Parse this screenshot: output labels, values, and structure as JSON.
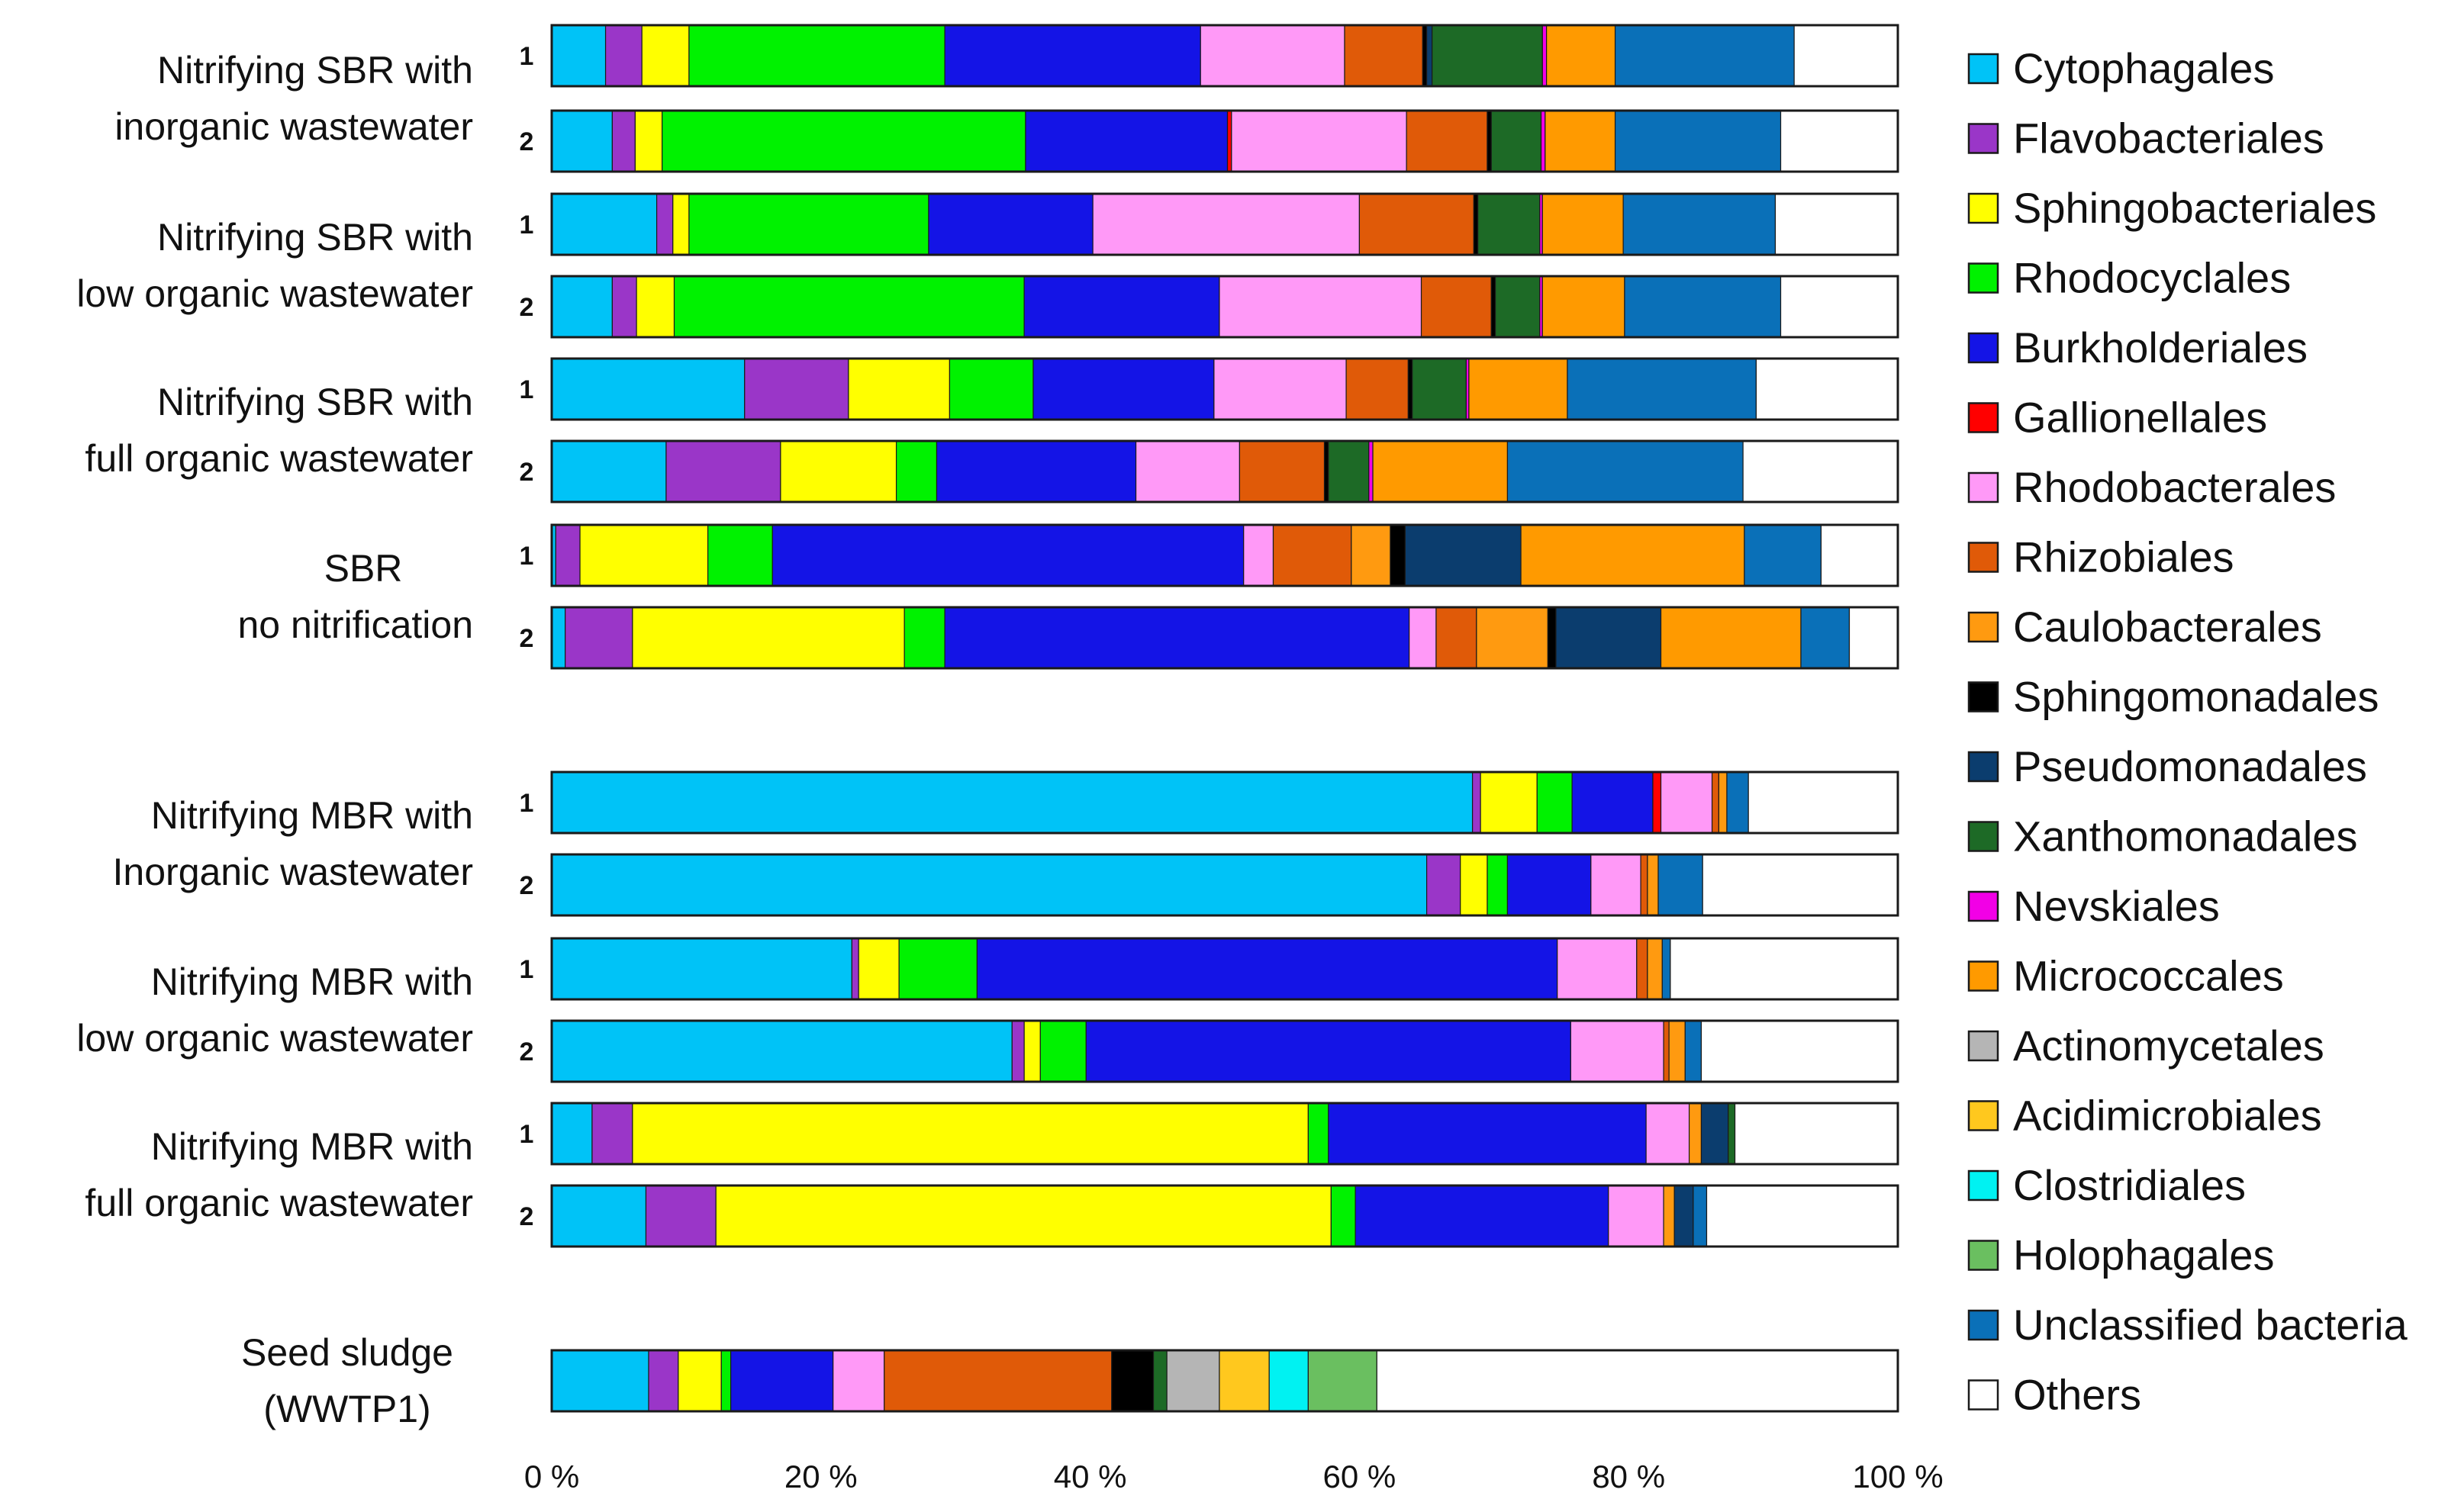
{
  "chart_data": {
    "type": "bar",
    "orientation": "horizontal",
    "stacked": true,
    "normalized_percent": true,
    "xlim": [
      0,
      100
    ],
    "x_ticks": [
      "0 %",
      "20 %",
      "40 %",
      "60 %",
      "80 %",
      "100 %"
    ],
    "legend_position": "right",
    "grid": false,
    "series": [
      {
        "name": "Cytophagales",
        "color": "#00C3F7"
      },
      {
        "name": "Flavobacteriales",
        "color": "#9A36C8"
      },
      {
        "name": "Sphingobacteriales",
        "color": "#FFFF00"
      },
      {
        "name": "Rhodocyclales",
        "color": "#00F200"
      },
      {
        "name": "Burkholderiales",
        "color": "#1414E6"
      },
      {
        "name": "Gallionellales",
        "color": "#FF0000"
      },
      {
        "name": "Rhodobacterales",
        "color": "#FF99F7"
      },
      {
        "name": "Rhizobiales",
        "color": "#E05A08"
      },
      {
        "name": "Caulobacterales",
        "color": "#FF9A10"
      },
      {
        "name": "Sphingomonadales",
        "color": "#000000"
      },
      {
        "name": "Pseudomonadales",
        "color": "#0B3D6E"
      },
      {
        "name": "Xanthomonadales",
        "color": "#1D6A26"
      },
      {
        "name": "Nevskiales",
        "color": "#F200E6"
      },
      {
        "name": "Micrococcales",
        "color": "#FF9A00"
      },
      {
        "name": "Actinomycetales",
        "color": "#B5B5B5"
      },
      {
        "name": "Acidimicrobiales",
        "color": "#FFC81E"
      },
      {
        "name": "Clostridiales",
        "color": "#00F2F2"
      },
      {
        "name": "Holophagales",
        "color": "#6ABF60"
      },
      {
        "name": "Unclassified bacteria",
        "color": "#0A70B8"
      },
      {
        "name": "Others",
        "color": "#FFFFFF"
      }
    ],
    "groups": [
      {
        "label": [
          "Nitrifying SBR with",
          "inorganic  wastewater"
        ],
        "bars": [
          {
            "replicate": "1",
            "values": [
              4,
              2.7,
              3.5,
              19,
              19,
              0,
              10.7,
              5.8,
              0,
              0.3,
              0.4,
              8.2,
              0.3,
              5.1,
              0,
              0,
              0,
              0,
              13.3,
              7.7
            ]
          },
          {
            "replicate": "2",
            "values": [
              4.5,
              1.7,
              2,
              27,
              15,
              0.3,
              13,
              6,
              0,
              0.3,
              0,
              3.7,
              0.3,
              5.2,
              0,
              0,
              0,
              0,
              12.3,
              8.7
            ]
          }
        ]
      },
      {
        "label": [
          "Nitrifying SBR with",
          "low organic wastewater"
        ],
        "bars": [
          {
            "replicate": "1",
            "values": [
              7.8,
              1.2,
              1.2,
              17.8,
              12.2,
              0,
              19.8,
              8.5,
              0,
              0.3,
              0,
              4.6,
              0.2,
              6,
              0,
              0,
              0,
              0,
              11.3,
              9.1
            ]
          },
          {
            "replicate": "2",
            "values": [
              4.5,
              1.8,
              2.8,
              26,
              14.5,
              0,
              15,
              5.2,
              0,
              0.3,
              0,
              3.3,
              0.2,
              6.1,
              0,
              0,
              0,
              0,
              11.6,
              8.7
            ]
          }
        ]
      },
      {
        "label": [
          "Nitrifying SBR with",
          "full organic wastewater"
        ],
        "bars": [
          {
            "replicate": "1",
            "values": [
              14.3,
              7.7,
              7.5,
              6.2,
              13.4,
              0,
              9.8,
              4.6,
              0,
              0.3,
              0,
              4,
              0.2,
              7.3,
              0,
              0,
              0,
              0,
              14,
              10.5
            ]
          },
          {
            "replicate": "2",
            "values": [
              8.5,
              8.5,
              8.6,
              3,
              14.8,
              0,
              7.7,
              6.3,
              0,
              0.3,
              0,
              3,
              0.3,
              10,
              0,
              0,
              0,
              0,
              17.5,
              11.5
            ]
          }
        ]
      },
      {
        "label": [
          "SBR",
          "no nitrification"
        ],
        "bars": [
          {
            "replicate": "1",
            "values": [
              0.3,
              1.8,
              9.5,
              4.8,
              35,
              0,
              2.2,
              5.8,
              2.9,
              1.1,
              8.6,
              0,
              0,
              16.6,
              0,
              0,
              0,
              0,
              5.7,
              5.7
            ]
          },
          {
            "replicate": "2",
            "values": [
              1,
              5,
              20.2,
              3,
              34.5,
              0,
              2,
              3,
              5.3,
              0.6,
              7.8,
              0,
              0,
              10.4,
              0,
              0,
              0,
              0,
              3.6,
              3.6
            ]
          }
        ]
      },
      {
        "label": [
          "Nitrifying MBR with",
          "Inorganic wastewater"
        ],
        "bars": [
          {
            "replicate": "1",
            "values": [
              68.4,
              0.6,
              4.2,
              2.6,
              6,
              0.6,
              3.8,
              0.5,
              0.6,
              0,
              0,
              0,
              0,
              0,
              0,
              0,
              0,
              0,
              1.6,
              11.1
            ]
          },
          {
            "replicate": "2",
            "values": [
              65,
              2.5,
              2,
              1.5,
              6.2,
              0,
              3.7,
              0.5,
              0.8,
              0,
              0,
              0,
              0,
              0,
              0,
              0,
              0,
              0,
              3.3,
              14.5
            ]
          }
        ]
      },
      {
        "label": [
          "Nitrifying MBR with",
          "low organic wastewater"
        ],
        "bars": [
          {
            "replicate": "1",
            "values": [
              22.3,
              0.5,
              3,
              5.8,
              43.1,
              0,
              5.9,
              0.8,
              1.1,
              0,
              0,
              0,
              0,
              0,
              0,
              0,
              0,
              0,
              0.6,
              16.9
            ]
          },
          {
            "replicate": "2",
            "values": [
              34.2,
              0.9,
              1.2,
              3.4,
              36,
              0,
              6.9,
              0.4,
              1.2,
              0,
              0,
              0,
              0,
              0,
              0,
              0,
              0,
              0,
              1.2,
              14.6
            ]
          }
        ]
      },
      {
        "label": [
          "Nitrifying MBR with",
          "full organic wastewater"
        ],
        "bars": [
          {
            "replicate": "1",
            "values": [
              3,
              3,
              50.2,
              1.5,
              23.6,
              0,
              3.2,
              0,
              0.9,
              0,
              2,
              0.5,
              0,
              0,
              0,
              0,
              0,
              0,
              0,
              12.1
            ]
          },
          {
            "replicate": "2",
            "values": [
              7,
              5.2,
              45.7,
              1.8,
              18.8,
              0,
              4.1,
              0,
              0.8,
              0,
              1.4,
              0,
              0,
              0,
              0,
              0,
              0,
              0,
              1,
              14.2
            ]
          }
        ]
      },
      {
        "label": [
          "Seed sludge",
          "(WWTP1)"
        ],
        "bars": [
          {
            "replicate": "",
            "values": [
              7.2,
              2.2,
              3.2,
              0.7,
              7.6,
              0,
              3.8,
              16.9,
              0,
              3.1,
              0,
              1,
              0,
              0,
              3.9,
              3.7,
              2.9,
              5.1,
              0,
              38.7
            ]
          }
        ]
      }
    ]
  }
}
